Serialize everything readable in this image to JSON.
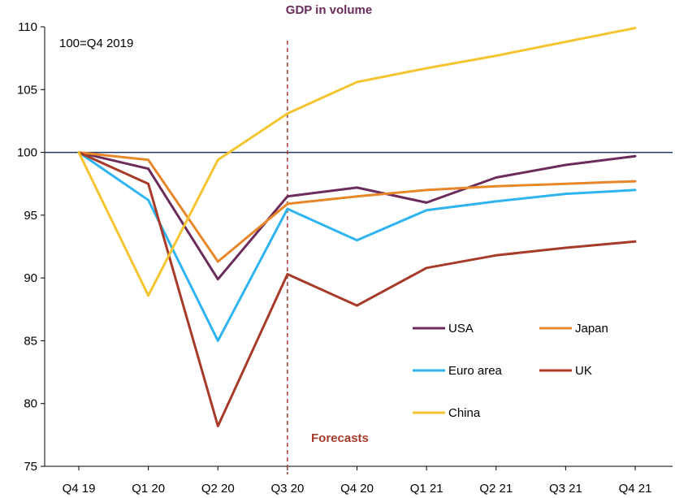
{
  "chart_data": {
    "type": "line",
    "title": "GDP in volume",
    "note": "100=Q4 2019",
    "forecast_label": "Forecasts",
    "forecast_start": "Q3 20",
    "baseline": 100,
    "categories": [
      "Q4 19",
      "Q1 20",
      "Q2 20",
      "Q3 20",
      "Q4 20",
      "Q1 21",
      "Q2 21",
      "Q3 21",
      "Q4 21"
    ],
    "ylim": [
      75,
      110
    ],
    "yticks": [
      75,
      80,
      85,
      90,
      95,
      100,
      105,
      110
    ],
    "grid": false,
    "legend_position": "lower-right",
    "series": [
      {
        "name": "USA",
        "color": "#6b2c5c",
        "values": [
          100,
          98.7,
          89.9,
          96.5,
          97.2,
          96.0,
          98.0,
          99.0,
          99.7
        ]
      },
      {
        "name": "Japan",
        "color": "#e8862a",
        "values": [
          100,
          99.4,
          91.3,
          95.9,
          96.5,
          97.0,
          97.3,
          97.5,
          97.7
        ]
      },
      {
        "name": "Euro area",
        "color": "#2fb4f0",
        "values": [
          100,
          96.2,
          85.0,
          95.5,
          93.0,
          95.4,
          96.1,
          96.7,
          97.0
        ]
      },
      {
        "name": "UK",
        "color": "#a83a2a",
        "values": [
          100,
          97.5,
          78.2,
          90.3,
          87.8,
          90.8,
          91.8,
          92.4,
          92.9
        ]
      },
      {
        "name": "China",
        "color": "#f5c531",
        "values": [
          100,
          88.6,
          99.4,
          103.1,
          105.6,
          106.7,
          107.7,
          108.8,
          109.9
        ]
      }
    ],
    "colors": {
      "title": "#6b2c5c",
      "forecast": "#a83a2a",
      "baseline": "#1f3864",
      "axis": "#000000"
    }
  }
}
